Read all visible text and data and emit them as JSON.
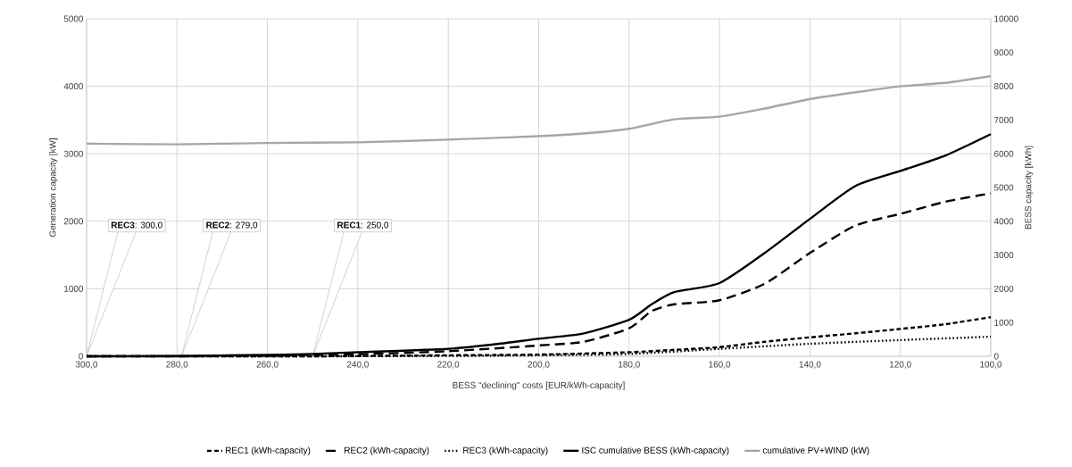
{
  "chart_data": {
    "type": "line",
    "xlabel": "BESS \"declining\" costs [EUR/kWh-capacity]",
    "ylabel": "Generation capacity [kW]",
    "y2label": "BESS capacity [kWh]",
    "xlim": [
      300,
      100
    ],
    "xticks": [
      {
        "value": 300,
        "label": "300,0"
      },
      {
        "value": 280,
        "label": "280,0"
      },
      {
        "value": 260,
        "label": "260,0"
      },
      {
        "value": 240,
        "label": "240,0"
      },
      {
        "value": 220,
        "label": "220,0"
      },
      {
        "value": 200,
        "label": "200,0"
      },
      {
        "value": 180,
        "label": "180,0"
      },
      {
        "value": 160,
        "label": "160,0"
      },
      {
        "value": 140,
        "label": "140,0"
      },
      {
        "value": 120,
        "label": "120,0"
      },
      {
        "value": 100,
        "label": "100,0"
      }
    ],
    "ylim": [
      0,
      5000
    ],
    "yticks": [
      0,
      1000,
      2000,
      3000,
      4000,
      5000
    ],
    "y2lim": [
      0,
      10000
    ],
    "y2ticks": [
      0,
      1000,
      2000,
      3000,
      4000,
      5000,
      6000,
      7000,
      8000,
      9000,
      10000
    ],
    "grid": true,
    "legend": "bottom",
    "series": [
      {
        "name": "REC1 (kWh-capacity)",
        "color": "#000000",
        "line_style": "dashed",
        "axis": "y2",
        "x": [
          300,
          250,
          220,
          200,
          180,
          170,
          160,
          150,
          140,
          130,
          120,
          110,
          100
        ],
        "values": [
          0,
          0,
          30,
          50,
          120,
          190,
          270,
          430,
          560,
          680,
          810,
          950,
          1160
        ]
      },
      {
        "name": "REC2 (kWh-capacity)",
        "color": "#000000",
        "line_style": "long dashed",
        "axis": "y2",
        "x": [
          300,
          279,
          260,
          240,
          220,
          200,
          190,
          180,
          175,
          170,
          160,
          150,
          140,
          130,
          120,
          110,
          100
        ],
        "values": [
          0,
          0,
          20,
          60,
          150,
          320,
          430,
          830,
          1340,
          1540,
          1660,
          2150,
          3060,
          3870,
          4220,
          4580,
          4830
        ]
      },
      {
        "name": "REC3 (kWh-capacity)",
        "color": "#000000",
        "line_style": "dotted",
        "axis": "y2",
        "x": [
          300,
          250,
          220,
          200,
          180,
          160,
          140,
          120,
          100
        ],
        "values": [
          0,
          0,
          10,
          30,
          70,
          220,
          370,
          480,
          580
        ]
      },
      {
        "name": "ISC cumulative BESS (kWh-capacity)",
        "color": "#000000",
        "line_style": "solid",
        "axis": "y2",
        "x": [
          300,
          280,
          260,
          250,
          240,
          220,
          210,
          200,
          190,
          180,
          175,
          170,
          160,
          150,
          140,
          130,
          120,
          110,
          100
        ],
        "values": [
          0,
          10,
          40,
          70,
          120,
          220,
          350,
          520,
          680,
          1080,
          1540,
          1900,
          2170,
          3060,
          4070,
          5040,
          5490,
          5950,
          6580
        ]
      },
      {
        "name": "cumulative PV+WIND (kW)",
        "color": "#a6a6a6",
        "line_style": "solid",
        "x": [
          300,
          280,
          260,
          240,
          220,
          200,
          190,
          180,
          170,
          160,
          150,
          140,
          130,
          120,
          110,
          100
        ],
        "values": [
          3150,
          3140,
          3160,
          3170,
          3210,
          3260,
          3300,
          3370,
          3510,
          3550,
          3670,
          3810,
          3910,
          4000,
          4050,
          4150
        ]
      }
    ],
    "annotations": [
      {
        "text": "**REC3**: 300,0",
        "x": 300,
        "y": 0
      },
      {
        "text": "**REC2**: 279,0",
        "x": 279,
        "y": 0
      },
      {
        "text": "**REC1**: 250,0",
        "x": 250,
        "y": 0
      }
    ]
  }
}
